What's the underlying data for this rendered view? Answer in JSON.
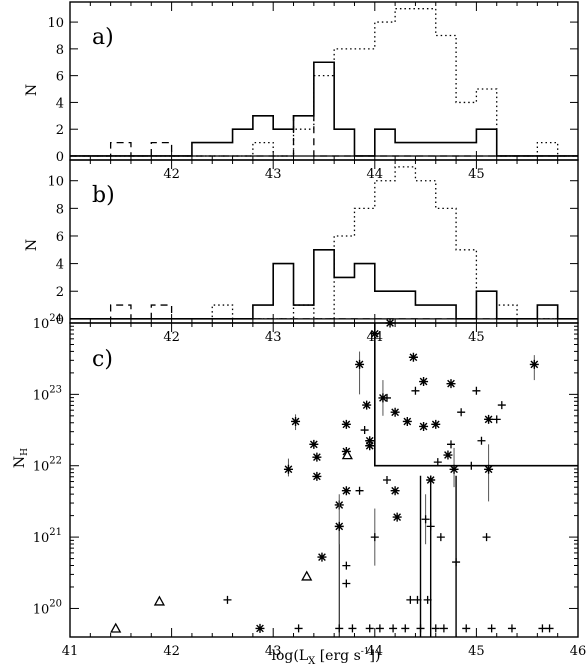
{
  "chart_data": [
    {
      "panel": "a)",
      "type": "step-histogram",
      "ylabel": "N",
      "xlim": [
        41,
        46
      ],
      "ylim": [
        -0.3,
        11.5
      ],
      "yticks": [
        0,
        2,
        4,
        6,
        8,
        10
      ],
      "xtick_labels": [
        "42",
        "43",
        "44",
        "45"
      ],
      "series": [
        {
          "style": "solid",
          "edges": [
            41.0,
            41.4,
            41.6,
            41.8,
            42.0,
            42.2,
            42.4,
            42.6,
            42.8,
            43.0,
            43.2,
            43.4,
            43.6,
            43.8,
            44.0,
            44.2,
            44.4,
            44.6,
            44.8,
            45.0,
            45.2,
            46.0
          ],
          "counts": [
            0,
            0,
            0,
            0,
            0,
            1,
            1,
            2,
            3,
            2,
            3,
            7,
            2,
            0,
            2,
            1,
            1,
            1,
            1,
            2,
            0
          ]
        },
        {
          "style": "dashed",
          "edges": [
            41.0,
            41.4,
            41.6,
            41.8,
            42.0,
            42.2,
            42.4,
            42.6,
            42.8,
            43.0,
            43.2,
            43.4,
            43.6,
            43.8,
            44.0,
            44.2,
            44.4,
            44.6,
            44.8,
            45.0,
            45.2,
            46.0
          ],
          "counts": [
            0,
            1,
            0,
            1,
            0,
            0,
            0,
            0,
            0,
            0,
            3,
            0,
            0,
            0,
            0,
            0,
            0,
            0,
            0,
            0,
            0
          ]
        },
        {
          "style": "dotted",
          "edges": [
            41.0,
            42.8,
            43.0,
            43.2,
            43.4,
            43.6,
            43.8,
            44.0,
            44.2,
            44.4,
            44.6,
            44.8,
            45.0,
            45.2,
            45.4,
            45.6,
            45.8,
            46.0
          ],
          "counts": [
            0,
            1,
            0,
            2,
            6,
            8,
            8,
            10,
            11,
            11,
            9,
            4,
            5,
            0,
            0,
            1,
            0
          ]
        }
      ]
    },
    {
      "panel": "b)",
      "type": "step-histogram",
      "ylabel": "N",
      "xlim": [
        41,
        46
      ],
      "ylim": [
        -0.3,
        11.5
      ],
      "yticks": [
        0,
        2,
        4,
        6,
        8,
        10
      ],
      "xtick_labels": [
        "42",
        "43",
        "44",
        "45"
      ],
      "series": [
        {
          "style": "solid",
          "edges": [
            41.0,
            42.8,
            43.0,
            43.2,
            43.4,
            43.6,
            43.8,
            44.0,
            44.4,
            44.8,
            45.0,
            45.2,
            45.6,
            45.8,
            46.0
          ],
          "counts": [
            0,
            1,
            4,
            1,
            5,
            3,
            4,
            2,
            1,
            0,
            2,
            0,
            1,
            0
          ]
        },
        {
          "style": "dashed",
          "edges": [
            41.0,
            41.4,
            41.6,
            41.8,
            42.0,
            43.2,
            43.4,
            43.6,
            43.8,
            46.0
          ],
          "counts": [
            0,
            1,
            0,
            1,
            0,
            0,
            0,
            0,
            0
          ]
        },
        {
          "style": "dotted",
          "edges": [
            41.0,
            42.4,
            42.6,
            43.2,
            43.4,
            43.6,
            43.8,
            44.0,
            44.2,
            44.4,
            44.6,
            44.8,
            45.0,
            45.2,
            45.4,
            45.6,
            46.0
          ],
          "counts": [
            0,
            1,
            0,
            1,
            0,
            6,
            8,
            10,
            11,
            10,
            8,
            5,
            2,
            1,
            0,
            0
          ]
        }
      ]
    },
    {
      "panel": "c)",
      "type": "scatter",
      "xlabel": "log(L",
      "xlabel_sub": "X",
      "xlabel_rest": " [erg s",
      "xlabel_sup": "-1",
      "xlabel_end": "])",
      "ylabel": "N",
      "ylabel_sub": "H",
      "xlim": [
        41,
        46
      ],
      "ylim_log10": [
        19.6,
        24
      ],
      "xtick_labels": [
        "41",
        "42",
        "43",
        "44",
        "45",
        "46"
      ],
      "ytick_labels": [
        {
          "base": "10",
          "exp": "20",
          "v": 20
        },
        {
          "base": "10",
          "exp": "21",
          "v": 21
        },
        {
          "base": "10",
          "exp": "22",
          "v": 22
        },
        {
          "base": "10",
          "exp": "23",
          "v": 23
        },
        {
          "base": "10",
          "exp": "24",
          "v": 24
        }
      ],
      "region_box": {
        "x": [
          44.0,
          46.0
        ],
        "log_nh": [
          22.0,
          24.0
        ]
      },
      "vertical_lines": [
        44.45,
        44.55,
        44.8
      ],
      "points_star": [
        {
          "x": 42.87,
          "y": 19.72
        },
        {
          "x": 43.15,
          "y": 21.95,
          "err": [
            21.85,
            22.1
          ]
        },
        {
          "x": 43.22,
          "y": 22.62,
          "err": [
            22.5,
            22.72
          ]
        },
        {
          "x": 43.4,
          "y": 22.3
        },
        {
          "x": 43.43,
          "y": 22.12
        },
        {
          "x": 43.43,
          "y": 21.85
        },
        {
          "x": 43.48,
          "y": 20.72
        },
        {
          "x": 43.65,
          "y": 21.45
        },
        {
          "x": 43.65,
          "y": 21.15,
          "err": [
            20.9,
            21.6
          ]
        },
        {
          "x": 43.72,
          "y": 22.58
        },
        {
          "x": 43.72,
          "y": 22.2
        },
        {
          "x": 43.72,
          "y": 21.65
        },
        {
          "x": 43.85,
          "y": 23.42,
          "err": [
            23.0,
            23.6
          ]
        },
        {
          "x": 43.92,
          "y": 22.85
        },
        {
          "x": 43.95,
          "y": 22.35
        },
        {
          "x": 43.95,
          "y": 22.28
        },
        {
          "x": 44.0,
          "y": 23.85
        },
        {
          "x": 44.08,
          "y": 22.95,
          "err": [
            22.7,
            23.2
          ]
        },
        {
          "x": 44.15,
          "y": 24.0
        },
        {
          "x": 44.2,
          "y": 22.75
        },
        {
          "x": 44.2,
          "y": 21.65
        },
        {
          "x": 44.22,
          "y": 21.28
        },
        {
          "x": 44.32,
          "y": 22.62
        },
        {
          "x": 44.38,
          "y": 23.52
        },
        {
          "x": 44.48,
          "y": 23.18
        },
        {
          "x": 44.48,
          "y": 22.55
        },
        {
          "x": 44.55,
          "y": 21.8
        },
        {
          "x": 44.6,
          "y": 22.58
        },
        {
          "x": 44.72,
          "y": 22.15
        },
        {
          "x": 44.75,
          "y": 23.15
        },
        {
          "x": 44.78,
          "y": 21.95,
          "err": [
            21.7,
            22.25
          ]
        },
        {
          "x": 45.12,
          "y": 21.95,
          "err": [
            21.5,
            22.3
          ]
        },
        {
          "x": 45.12,
          "y": 22.65
        },
        {
          "x": 45.57,
          "y": 23.42,
          "err": [
            23.2,
            23.55
          ]
        }
      ],
      "points_plus": [
        {
          "x": 42.55,
          "y": 20.12
        },
        {
          "x": 43.25,
          "y": 19.72
        },
        {
          "x": 43.65,
          "y": 19.72
        },
        {
          "x": 43.72,
          "y": 20.35
        },
        {
          "x": 43.72,
          "y": 20.6
        },
        {
          "x": 43.78,
          "y": 19.72
        },
        {
          "x": 43.85,
          "y": 21.65
        },
        {
          "x": 43.9,
          "y": 22.5
        },
        {
          "x": 43.95,
          "y": 19.72
        },
        {
          "x": 44.0,
          "y": 21.0,
          "err": [
            20.6,
            21.4
          ]
        },
        {
          "x": 44.05,
          "y": 19.72
        },
        {
          "x": 44.12,
          "y": 22.95
        },
        {
          "x": 44.12,
          "y": 21.8
        },
        {
          "x": 44.18,
          "y": 19.72
        },
        {
          "x": 44.3,
          "y": 19.72
        },
        {
          "x": 44.35,
          "y": 20.12
        },
        {
          "x": 44.4,
          "y": 23.05
        },
        {
          "x": 44.42,
          "y": 20.12
        },
        {
          "x": 44.45,
          "y": 19.72
        },
        {
          "x": 44.5,
          "y": 21.25,
          "err": [
            20.9,
            21.6
          ]
        },
        {
          "x": 44.52,
          "y": 20.12
        },
        {
          "x": 44.55,
          "y": 21.15
        },
        {
          "x": 44.6,
          "y": 19.72
        },
        {
          "x": 44.62,
          "y": 22.05
        },
        {
          "x": 44.65,
          "y": 21.0
        },
        {
          "x": 44.68,
          "y": 19.72
        },
        {
          "x": 44.75,
          "y": 22.3
        },
        {
          "x": 44.8,
          "y": 20.65
        },
        {
          "x": 44.85,
          "y": 22.75
        },
        {
          "x": 44.9,
          "y": 19.72
        },
        {
          "x": 44.95,
          "y": 22.0
        },
        {
          "x": 45.0,
          "y": 23.05
        },
        {
          "x": 45.05,
          "y": 22.35
        },
        {
          "x": 45.1,
          "y": 21.0
        },
        {
          "x": 45.15,
          "y": 19.72
        },
        {
          "x": 45.2,
          "y": 22.65
        },
        {
          "x": 45.25,
          "y": 22.85
        },
        {
          "x": 45.35,
          "y": 19.72
        },
        {
          "x": 45.65,
          "y": 19.72
        },
        {
          "x": 45.72,
          "y": 19.72
        }
      ],
      "points_triangle": [
        {
          "x": 41.45,
          "y": 19.72
        },
        {
          "x": 41.88,
          "y": 20.1
        },
        {
          "x": 43.33,
          "y": 20.45
        },
        {
          "x": 43.73,
          "y": 22.15
        }
      ]
    }
  ]
}
